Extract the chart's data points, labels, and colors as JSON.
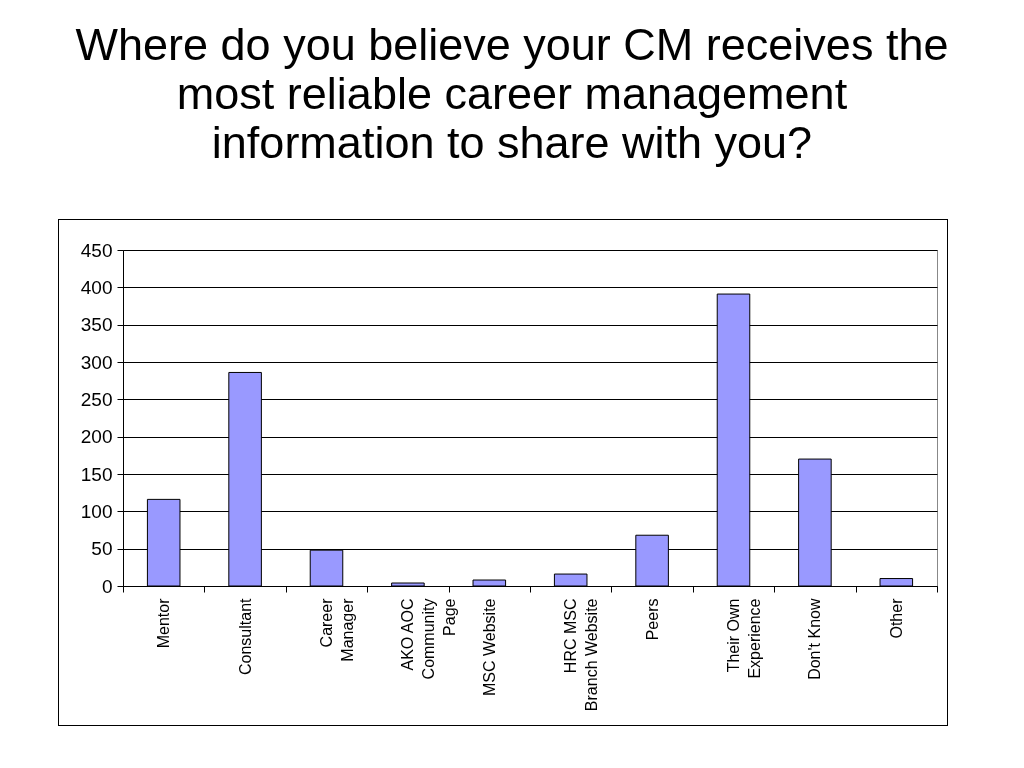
{
  "chart_data": {
    "type": "bar",
    "title": "Where do you believe your CM receives the most reliable career management information to share with you?",
    "categories": [
      "Mentor",
      "Consultant",
      "Career\nManager",
      "AKO AOC\nCommunity\nPage",
      "MSC Website",
      "HRC MSC\nBranch Website",
      "Peers",
      "Their Own\nExperience",
      "Don't Know",
      "Other"
    ],
    "values": [
      116,
      286,
      48,
      4,
      8,
      16,
      68,
      391,
      170,
      10
    ],
    "color": "#9999ff",
    "ylim": [
      0,
      450
    ],
    "yticks": [
      0,
      50,
      100,
      150,
      200,
      250,
      300,
      350,
      400,
      450
    ],
    "grid": "y"
  }
}
